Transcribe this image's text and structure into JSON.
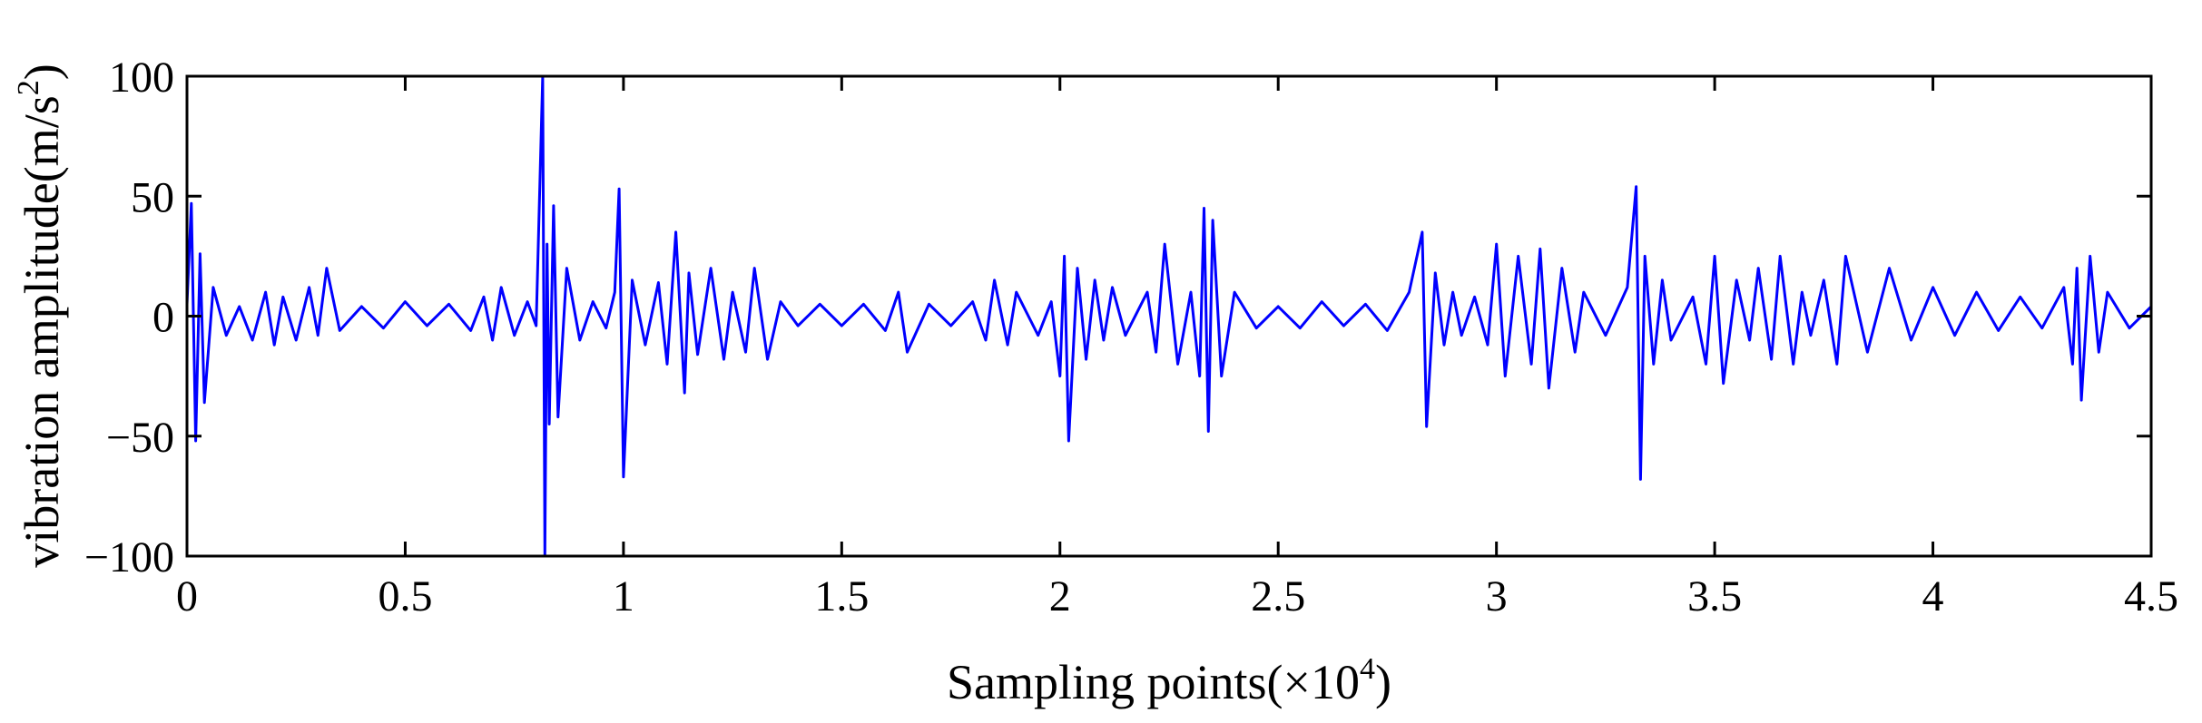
{
  "chart_data": {
    "type": "line",
    "title": "",
    "xlabel": "Sampling points(×10",
    "xlabel_sup": "4",
    "xlabel_close": ")",
    "ylabel": "vibration amplitude(m/s",
    "ylabel_sup": "2",
    "ylabel_close": ")",
    "xlim": [
      0,
      4.5
    ],
    "ylim": [
      -100,
      100
    ],
    "xticks": [
      0,
      0.5,
      1,
      1.5,
      2,
      2.5,
      3,
      3.5,
      4,
      4.5
    ],
    "xtick_labels": [
      "0",
      "0.5",
      "1",
      "1.5",
      "2",
      "2.5",
      "3",
      "3.5",
      "4",
      "4.5"
    ],
    "yticks": [
      100,
      50,
      0,
      -50,
      -100
    ],
    "ytick_labels": [
      "100",
      "50",
      "0",
      "−50",
      "−100"
    ],
    "grid": false,
    "legend": "none",
    "series_color": "#0000ff",
    "series": [
      {
        "x": [
          0,
          0.01,
          0.02,
          0.03,
          0.04,
          0.06,
          0.09,
          0.12,
          0.15,
          0.18,
          0.2,
          0.22,
          0.25,
          0.28,
          0.3,
          0.32,
          0.35,
          0.4,
          0.45,
          0.5,
          0.55,
          0.6,
          0.65,
          0.68,
          0.7,
          0.72,
          0.75,
          0.78,
          0.8,
          0.815,
          0.82,
          0.825,
          0.83,
          0.84,
          0.85,
          0.87,
          0.9,
          0.93,
          0.96,
          0.98,
          0.99,
          1.0,
          1.02,
          1.05,
          1.08,
          1.1,
          1.12,
          1.14,
          1.15,
          1.17,
          1.2,
          1.23,
          1.25,
          1.28,
          1.3,
          1.33,
          1.36,
          1.4,
          1.45,
          1.5,
          1.55,
          1.6,
          1.63,
          1.65,
          1.7,
          1.75,
          1.8,
          1.83,
          1.85,
          1.88,
          1.9,
          1.95,
          1.98,
          2.0,
          2.01,
          2.02,
          2.04,
          2.06,
          2.08,
          2.1,
          2.12,
          2.15,
          2.2,
          2.22,
          2.24,
          2.27,
          2.3,
          2.32,
          2.33,
          2.34,
          2.35,
          2.37,
          2.4,
          2.45,
          2.5,
          2.55,
          2.6,
          2.65,
          2.7,
          2.75,
          2.8,
          2.83,
          2.84,
          2.86,
          2.88,
          2.9,
          2.92,
          2.95,
          2.98,
          3.0,
          3.02,
          3.05,
          3.08,
          3.1,
          3.12,
          3.15,
          3.18,
          3.2,
          3.25,
          3.3,
          3.32,
          3.33,
          3.34,
          3.36,
          3.38,
          3.4,
          3.45,
          3.48,
          3.5,
          3.52,
          3.55,
          3.58,
          3.6,
          3.63,
          3.65,
          3.68,
          3.7,
          3.72,
          3.75,
          3.78,
          3.8,
          3.85,
          3.9,
          3.95,
          4.0,
          4.05,
          4.1,
          4.15,
          4.2,
          4.25,
          4.3,
          4.32,
          4.33,
          4.34,
          4.36,
          4.38,
          4.4,
          4.45,
          4.5
        ],
        "y": [
          5,
          47,
          -52,
          26,
          -36,
          12,
          -8,
          4,
          -10,
          10,
          -12,
          8,
          -10,
          12,
          -8,
          20,
          -6,
          4,
          -5,
          6,
          -4,
          5,
          -6,
          8,
          -10,
          12,
          -8,
          6,
          -4,
          100,
          -100,
          30,
          -45,
          46,
          -42,
          20,
          -10,
          6,
          -5,
          10,
          53,
          -67,
          15,
          -12,
          14,
          -20,
          35,
          -32,
          18,
          -16,
          20,
          -18,
          10,
          -15,
          20,
          -18,
          6,
          -4,
          5,
          -4,
          5,
          -6,
          10,
          -15,
          5,
          -4,
          6,
          -10,
          15,
          -12,
          10,
          -8,
          6,
          -25,
          25,
          -52,
          20,
          -18,
          15,
          -10,
          12,
          -8,
          10,
          -15,
          30,
          -20,
          10,
          -25,
          45,
          -48,
          40,
          -25,
          10,
          -5,
          4,
          -5,
          6,
          -4,
          5,
          -6,
          10,
          35,
          -46,
          18,
          -12,
          10,
          -8,
          8,
          -12,
          30,
          -25,
          25,
          -20,
          28,
          -30,
          20,
          -15,
          10,
          -8,
          12,
          54,
          -68,
          25,
          -20,
          15,
          -10,
          8,
          -20,
          25,
          -28,
          15,
          -10,
          20,
          -18,
          25,
          -20,
          10,
          -8,
          15,
          -20,
          25,
          -15,
          20,
          -10,
          12,
          -8,
          10,
          -6,
          8,
          -5,
          12,
          -20,
          20,
          -35,
          25,
          -15,
          10,
          -5,
          4
        ]
      }
    ]
  }
}
